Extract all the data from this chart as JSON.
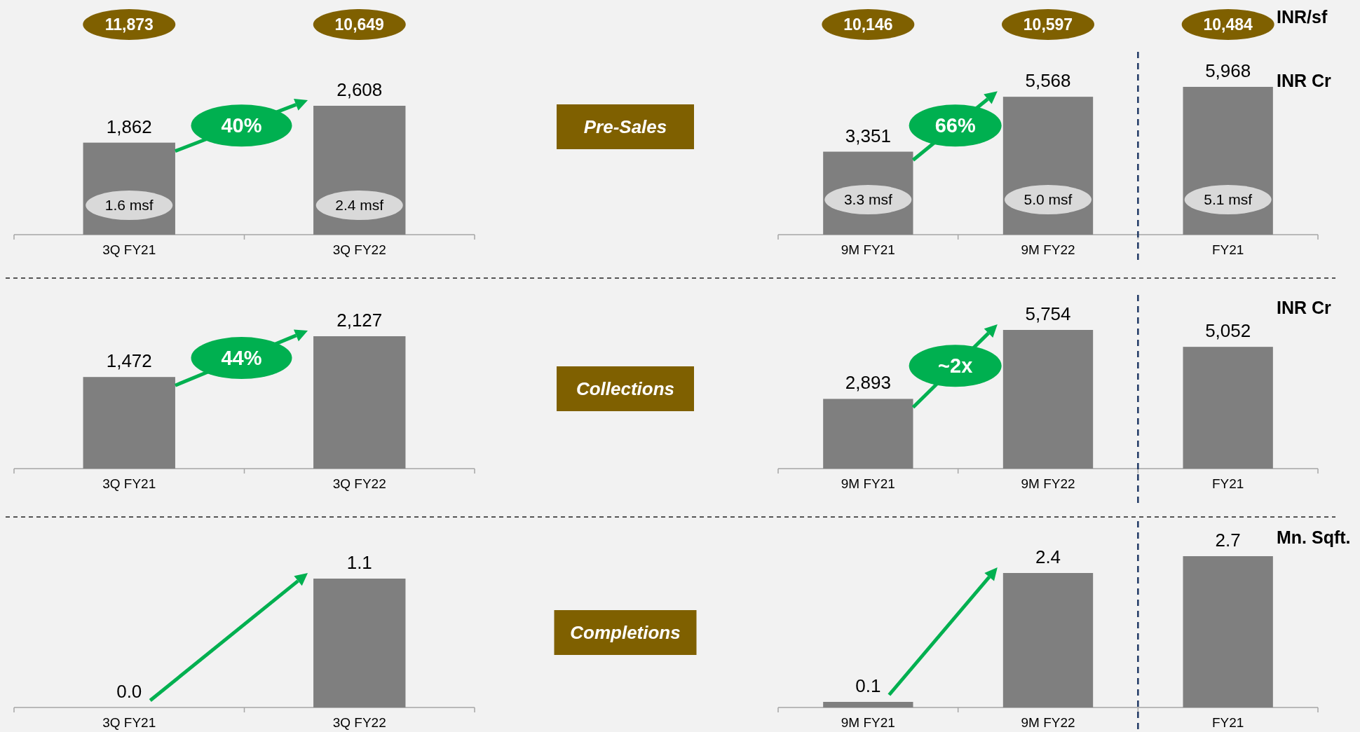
{
  "chart_data": [
    {
      "type": "bar",
      "categories": [
        "3Q FY21",
        "3Q FY22"
      ],
      "values": [
        1862,
        2608
      ],
      "color": "#7f7f7f",
      "value_labels": [
        "1,862",
        "2,608"
      ],
      "annotations": [
        "40%",
        "11,873",
        "10,649",
        "1.6 msf",
        "2.4 msf"
      ]
    },
    {
      "type": "other",
      "title": "Pre-Sales"
    },
    {
      "type": "bar",
      "categories": [
        "9M FY21",
        "9M FY22",
        "FY21"
      ],
      "values": [
        3351,
        5568,
        5968
      ],
      "color": "#7f7f7f",
      "value_labels": [
        "3,351",
        "5,568",
        "5,968"
      ],
      "ylabel": "INR Cr",
      "y2label": "INR/sf",
      "annotations": [
        "66%",
        "10,146",
        "10,597",
        "10,484",
        "3.3 msf",
        "5.0 msf",
        "5.1 msf"
      ]
    },
    {
      "type": "bar",
      "categories": [
        "3Q FY21",
        "3Q FY22"
      ],
      "values": [
        1472,
        2127
      ],
      "color": "#7f7f7f",
      "value_labels": [
        "1,472",
        "2,127"
      ],
      "annotations": [
        "44%"
      ]
    },
    {
      "type": "other",
      "title": "Collections"
    },
    {
      "type": "bar",
      "categories": [
        "9M FY21",
        "9M FY22",
        "FY21"
      ],
      "values": [
        2893,
        5754,
        5052
      ],
      "color": "#7f7f7f",
      "value_labels": [
        "2,893",
        "5,754",
        "5,052"
      ],
      "ylabel": "INR Cr",
      "annotations": [
        "~2x"
      ]
    },
    {
      "type": "bar",
      "categories": [
        "3Q FY21",
        "3Q FY22"
      ],
      "values": [
        0.0,
        1.1
      ],
      "color": "#7f7f7f",
      "value_labels": [
        "0.0",
        "1.1"
      ]
    },
    {
      "type": "other",
      "title": "Completions"
    },
    {
      "type": "bar",
      "categories": [
        "9M FY21",
        "9M FY22",
        "FY21"
      ],
      "values": [
        0.1,
        2.4,
        2.7
      ],
      "color": "#7f7f7f",
      "value_labels": [
        "0.1",
        "2.4",
        "2.7"
      ],
      "ylabel": "Mn. Sqft."
    }
  ]
}
